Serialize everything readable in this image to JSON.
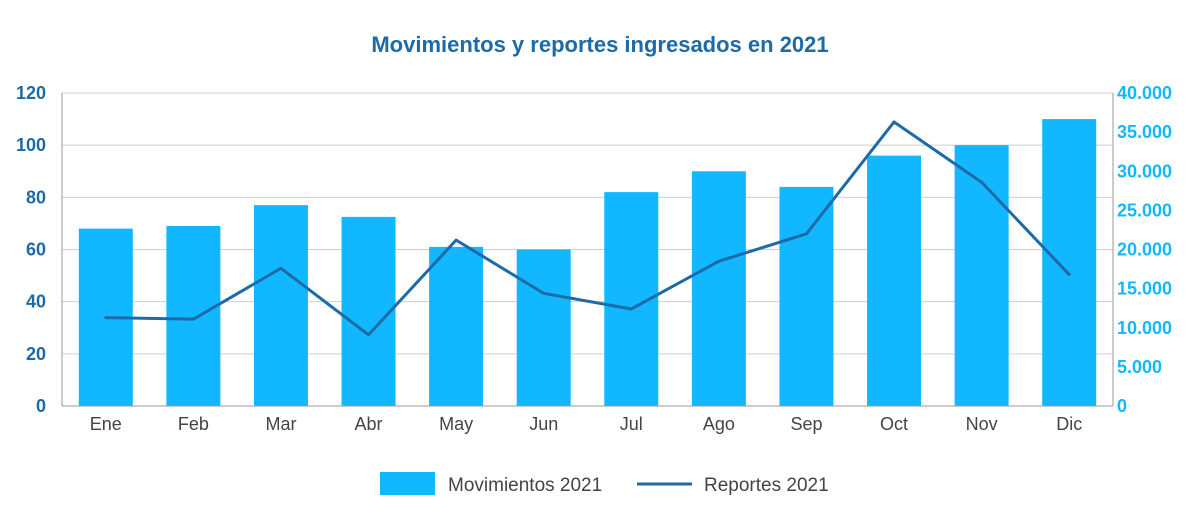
{
  "chart_data": {
    "type": "bar+line",
    "title": "Movimientos y reportes ingresados en 2021",
    "categories": [
      "Ene",
      "Feb",
      "Mar",
      "Abr",
      "May",
      "Jun",
      "Jul",
      "Ago",
      "Sep",
      "Oct",
      "Nov",
      "Dic"
    ],
    "series": [
      {
        "name": "Movimientos 2021",
        "type": "bar",
        "axis": "left",
        "color": "#12b8ff",
        "values": [
          68,
          69,
          77,
          72.5,
          61,
          60,
          82,
          90,
          84,
          96,
          100,
          110
        ]
      },
      {
        "name": "Reportes 2021",
        "type": "line",
        "axis": "right",
        "color": "#1d6aa8",
        "values": [
          11300,
          11100,
          17600,
          9100,
          21200,
          14400,
          12400,
          18500,
          22000,
          36300,
          28600,
          16800
        ]
      }
    ],
    "y_left": {
      "ylim": [
        0,
        120
      ],
      "ticks": [
        "0",
        "20",
        "40",
        "60",
        "80",
        "100",
        "120"
      ],
      "tick_values": [
        0,
        20,
        40,
        60,
        80,
        100,
        120
      ],
      "color": "#1d6aa8"
    },
    "y_right": {
      "ylim": [
        0,
        40000
      ],
      "ticks": [
        "0",
        "5.000",
        "10.000",
        "15.000",
        "20.000",
        "25.000",
        "30.000",
        "35.000",
        "40.000"
      ],
      "tick_values": [
        0,
        5000,
        10000,
        15000,
        20000,
        25000,
        30000,
        35000,
        40000
      ],
      "color": "#12b8ff"
    },
    "grid": true,
    "legend_position": "bottom-center",
    "colors": {
      "title": "#1d6aa8",
      "grid": "#cfcfcf",
      "axis": "#9a9a9a",
      "x_tick_text": "#444444"
    }
  }
}
